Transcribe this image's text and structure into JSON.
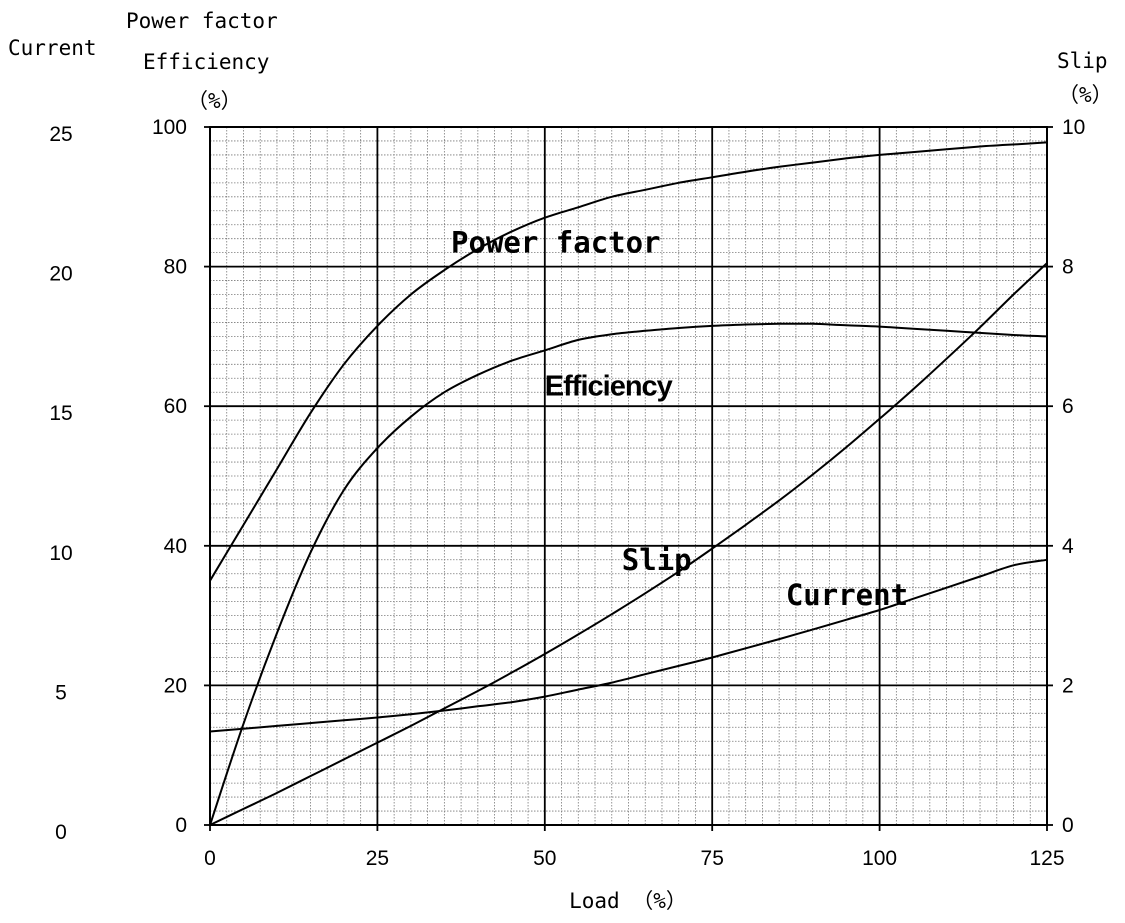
{
  "chart_data": {
    "type": "line",
    "xlabel": "Load （%）",
    "x_ticks": [
      "0",
      "25",
      "50",
      "75",
      "100",
      "125"
    ],
    "xlim": [
      0,
      125
    ],
    "axes": {
      "left_outer": {
        "title": "Current",
        "ticks": [
          "0",
          "5",
          "10",
          "15",
          "20",
          "25"
        ],
        "range": [
          0,
          25
        ]
      },
      "left_inner": {
        "title_line1": "Power factor",
        "title_line2": "Efficiency",
        "title_unit": "（%）",
        "ticks": [
          "0",
          "20",
          "40",
          "60",
          "80",
          "100"
        ],
        "range": [
          0,
          100
        ]
      },
      "right": {
        "title": "Slip",
        "title_unit": "（%）",
        "ticks": [
          "0",
          "2",
          "4",
          "6",
          "8",
          "10"
        ],
        "range": [
          0,
          10
        ]
      }
    },
    "grid": true,
    "series": [
      {
        "name": "Power factor",
        "axis": "left_inner",
        "x": [
          0,
          5,
          10,
          15,
          20,
          25,
          30,
          35,
          40,
          45,
          50,
          55,
          60,
          65,
          70,
          75,
          80,
          85,
          90,
          95,
          100,
          105,
          110,
          115,
          120,
          125
        ],
        "values": [
          35,
          43,
          51,
          59,
          66,
          71.5,
          76,
          79.5,
          82.5,
          85,
          87,
          88.5,
          90,
          91,
          92,
          92.8,
          93.6,
          94.3,
          94.9,
          95.5,
          96,
          96.4,
          96.8,
          97.2,
          97.5,
          97.8
        ]
      },
      {
        "name": "Efficiency",
        "axis": "left_inner",
        "x": [
          0,
          5,
          10,
          15,
          20,
          25,
          30,
          35,
          40,
          45,
          50,
          55,
          60,
          65,
          70,
          75,
          80,
          85,
          90,
          95,
          100,
          105,
          110,
          115,
          120,
          125
        ],
        "values": [
          0,
          14.5,
          27.5,
          39,
          48,
          54,
          58.5,
          62,
          64.5,
          66.5,
          68,
          69.5,
          70.3,
          70.8,
          71.2,
          71.5,
          71.7,
          71.8,
          71.8,
          71.6,
          71.4,
          71.1,
          70.8,
          70.5,
          70.2,
          70
        ]
      },
      {
        "name": "Slip",
        "axis": "right",
        "x": [
          0,
          5,
          10,
          15,
          20,
          25,
          30,
          35,
          40,
          45,
          50,
          55,
          60,
          65,
          70,
          75,
          80,
          85,
          90,
          95,
          100,
          105,
          110,
          115,
          120,
          125
        ],
        "values": [
          0,
          0.23,
          0.46,
          0.7,
          0.94,
          1.18,
          1.42,
          1.67,
          1.92,
          2.18,
          2.45,
          2.73,
          3.02,
          3.32,
          3.63,
          3.96,
          4.3,
          4.65,
          5.02,
          5.41,
          5.82,
          6.24,
          6.68,
          7.13,
          7.6,
          8.05
        ]
      },
      {
        "name": "Current",
        "axis": "left_outer",
        "x": [
          0,
          5,
          10,
          15,
          20,
          25,
          30,
          35,
          40,
          45,
          50,
          55,
          60,
          65,
          70,
          75,
          80,
          85,
          90,
          95,
          100,
          105,
          110,
          115,
          120,
          125
        ],
        "values": [
          3.35,
          3.45,
          3.55,
          3.65,
          3.75,
          3.85,
          3.97,
          4.1,
          4.25,
          4.4,
          4.6,
          4.85,
          5.1,
          5.4,
          5.7,
          6.0,
          6.33,
          6.66,
          7.0,
          7.35,
          7.7,
          8.1,
          8.5,
          8.9,
          9.3,
          9.5
        ]
      }
    ],
    "annotations": [
      {
        "text": "Power factor",
        "x": 36,
        "y_axis": "left_inner",
        "y": 82
      },
      {
        "text": "Efficiency",
        "x": 50,
        "y_axis": "left_inner",
        "y": 61.5
      },
      {
        "text": "Slip",
        "x": 61.5,
        "y_axis": "left_inner",
        "y": 36.5
      },
      {
        "text": "Current",
        "x": 86,
        "y_axis": "left_inner",
        "y": 31.5
      }
    ]
  }
}
